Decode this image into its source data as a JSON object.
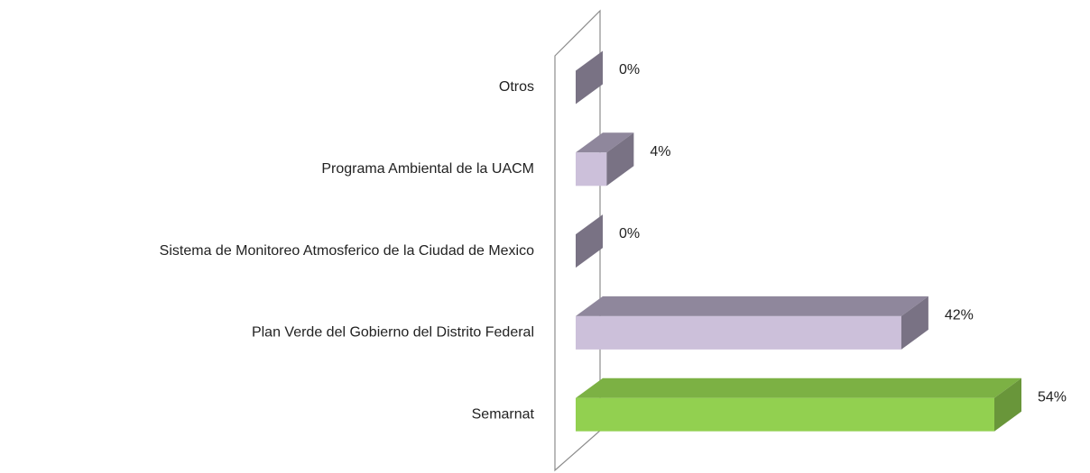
{
  "chart_data": {
    "type": "bar3d-horizontal",
    "categories": [
      "Otros",
      "Programa Ambiental de la UACM",
      "Sistema de Monitoreo Atmosferico de la Ciudad de Mexico",
      "Plan Verde del Gobierno del Distrito Federal",
      "Semarnat"
    ],
    "values": [
      0,
      4,
      0,
      42,
      54
    ],
    "value_labels": [
      "0%",
      "4%",
      "0%",
      "42%",
      "54%"
    ],
    "colors": [
      "#ccc0da",
      "#ccc0da",
      "#ccc0da",
      "#ccc0da",
      "#92d050"
    ]
  }
}
